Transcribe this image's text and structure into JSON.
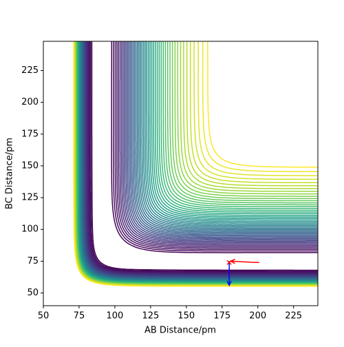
{
  "chart_data": {
    "type": "contour",
    "xlabel": "AB Distance/pm",
    "ylabel": "BC Distance/pm",
    "xlim": [
      50,
      242
    ],
    "ylim": [
      40,
      248
    ],
    "xticks": [
      50,
      75,
      100,
      125,
      150,
      175,
      200,
      225
    ],
    "yticks": [
      50,
      75,
      100,
      125,
      150,
      175,
      200,
      225
    ],
    "colormap": "viridis",
    "contour_levels": [
      -432,
      -424,
      -416,
      -408,
      -400,
      -392,
      -384,
      -376,
      -368,
      -360,
      -352,
      -344,
      -336,
      -328,
      -320,
      -312,
      -304,
      -296,
      -288,
      -280,
      -272,
      -264,
      -256,
      -248,
      -240,
      -232,
      -224,
      -216,
      -208,
      -200,
      -192,
      -184,
      -176,
      -168,
      -160,
      -152,
      -144,
      -136,
      -128,
      -120,
      -112,
      -104,
      -96,
      -88,
      -80,
      -72,
      -64
    ],
    "trajectories": [
      {
        "color": "#ff0000",
        "x": [
          201,
          195,
          190,
          185,
          181
        ],
        "y": [
          74,
          74.2,
          74.5,
          74.8,
          75
        ]
      },
      {
        "color": "#0000ff",
        "x": [
          180,
          180,
          180,
          180
        ],
        "y": [
          75,
          70,
          62,
          56
        ]
      }
    ],
    "start": {
      "x": 180,
      "y": 74
    }
  }
}
